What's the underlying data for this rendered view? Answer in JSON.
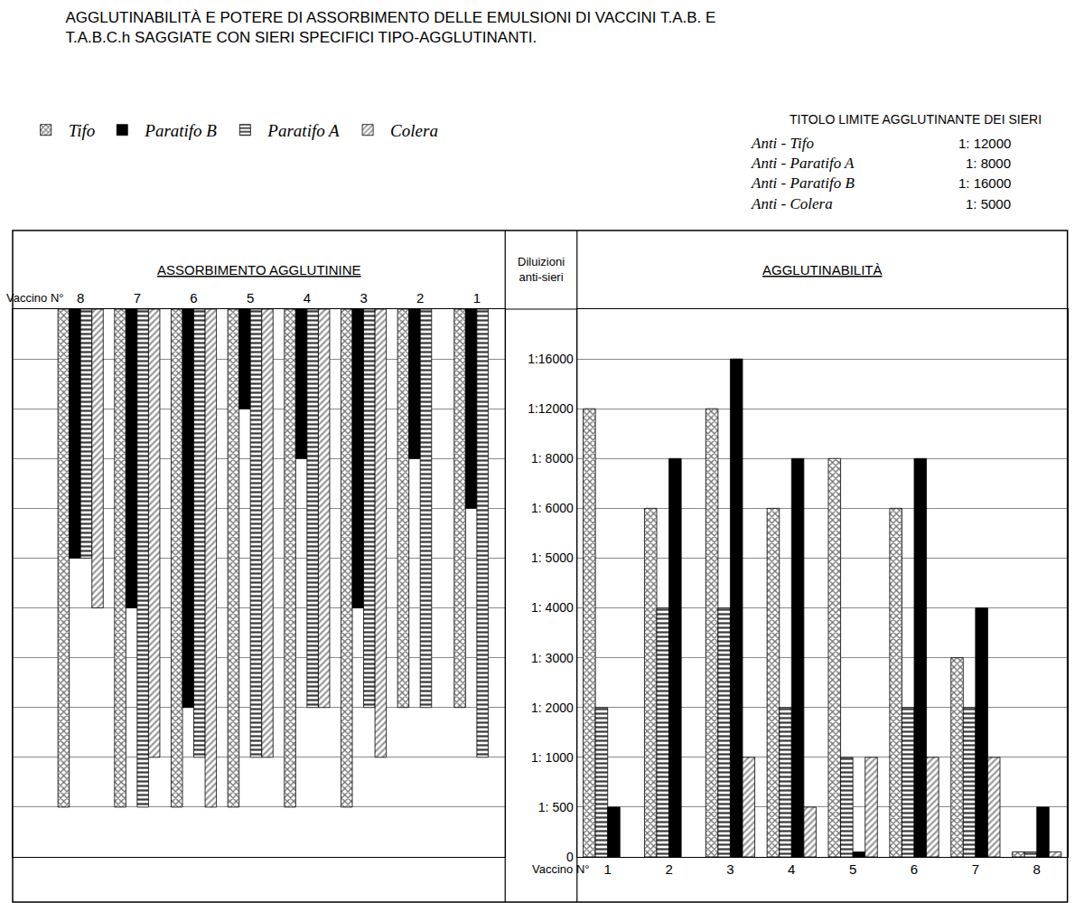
{
  "title": "AGGLUTINABILITÀ E POTERE DI ASSORBIMENTO DELLE EMULSIONI DI VACCINI T.A.B. E\nT.A.B.C.h SAGGIATE CON SIERI SPECIFICI TIPO-AGGLUTINANTI.",
  "sieri": {
    "title": "TITOLO LIMITE AGGLUTINANTE DEI SIERI",
    "rows": [
      {
        "name": "Anti - Tifo",
        "titolo": "1: 12000"
      },
      {
        "name": "Anti - Paratifo A",
        "titolo": "1: 8000"
      },
      {
        "name": "Anti - Paratifo B",
        "titolo": "1: 16000"
      },
      {
        "name": "Anti - Colera",
        "titolo": "1: 5000"
      }
    ]
  },
  "chart_data": [
    {
      "type": "hanging_bar",
      "title": "ASSORBIMENTO AGGLUTININE",
      "xlabel": "Vaccino N°",
      "categories": [
        "8",
        "7",
        "6",
        "5",
        "4",
        "3",
        "2",
        "1"
      ],
      "series": [
        {
          "name": "Tifo",
          "color": "#6e6e6e",
          "values": [
            500,
            500,
            500,
            500,
            500,
            500,
            2000,
            2000
          ]
        },
        {
          "name": "Paratifo B",
          "color": "#000000",
          "values": [
            5000,
            4000,
            2000,
            12000,
            8000,
            4000,
            8000,
            6000
          ]
        },
        {
          "name": "Paratifo A",
          "color": "#3c3c3c",
          "values": [
            5000,
            500,
            1000,
            1000,
            2000,
            2000,
            2000,
            1000
          ]
        },
        {
          "name": "Colera",
          "color": "#9a9a9a",
          "values": [
            4000,
            1000,
            500,
            1000,
            2000,
            1000,
            null,
            null
          ]
        }
      ],
      "ylim": [
        0,
        20000
      ],
      "yticks": [
        0,
        500,
        1000,
        2000,
        3000,
        4000,
        5000,
        6000,
        8000,
        12000,
        16000
      ],
      "grid": true,
      "tick_labels": "x",
      "legend": "top left"
    },
    {
      "type": "bar",
      "title": "AGGLUTINABILITÀ",
      "xlabel": "Vaccino N°",
      "ylabel": "Diluizioni anti-sieri",
      "categories": [
        "1",
        "2",
        "3",
        "4",
        "5",
        "6",
        "7",
        "8"
      ],
      "series": [
        {
          "name": "Tifo",
          "color": "#6e6e6e",
          "values": [
            12000,
            6000,
            12000,
            6000,
            8000,
            6000,
            3000,
            50
          ]
        },
        {
          "name": "Paratifo A",
          "color": "#3c3c3c",
          "values": [
            2000,
            4000,
            4000,
            2000,
            1000,
            2000,
            2000,
            50
          ]
        },
        {
          "name": "Paratifo B",
          "color": "#000000",
          "values": [
            500,
            8000,
            16000,
            8000,
            50,
            8000,
            4000,
            500
          ]
        },
        {
          "name": "Colera",
          "color": "#9a9a9a",
          "values": [
            null,
            null,
            1000,
            500,
            1000,
            1000,
            1000,
            50
          ]
        }
      ],
      "ylim": [
        0,
        20000
      ],
      "yticks": [
        0,
        {
          "value": 500,
          "label": "1: 500"
        },
        {
          "value": 1000,
          "label": "1: 1000"
        },
        {
          "value": 2000,
          "label": "1: 2000"
        },
        {
          "value": 3000,
          "label": "1: 3000"
        },
        {
          "value": 4000,
          "label": "1: 4000"
        },
        {
          "value": 5000,
          "label": "1: 5000"
        },
        {
          "value": 6000,
          "label": "1: 6000"
        },
        {
          "value": 8000,
          "label": "1: 8000"
        },
        {
          "value": 12000,
          "label": "1:12000"
        },
        {
          "value": 16000,
          "label": "1:16000"
        }
      ],
      "grid": true
    }
  ]
}
